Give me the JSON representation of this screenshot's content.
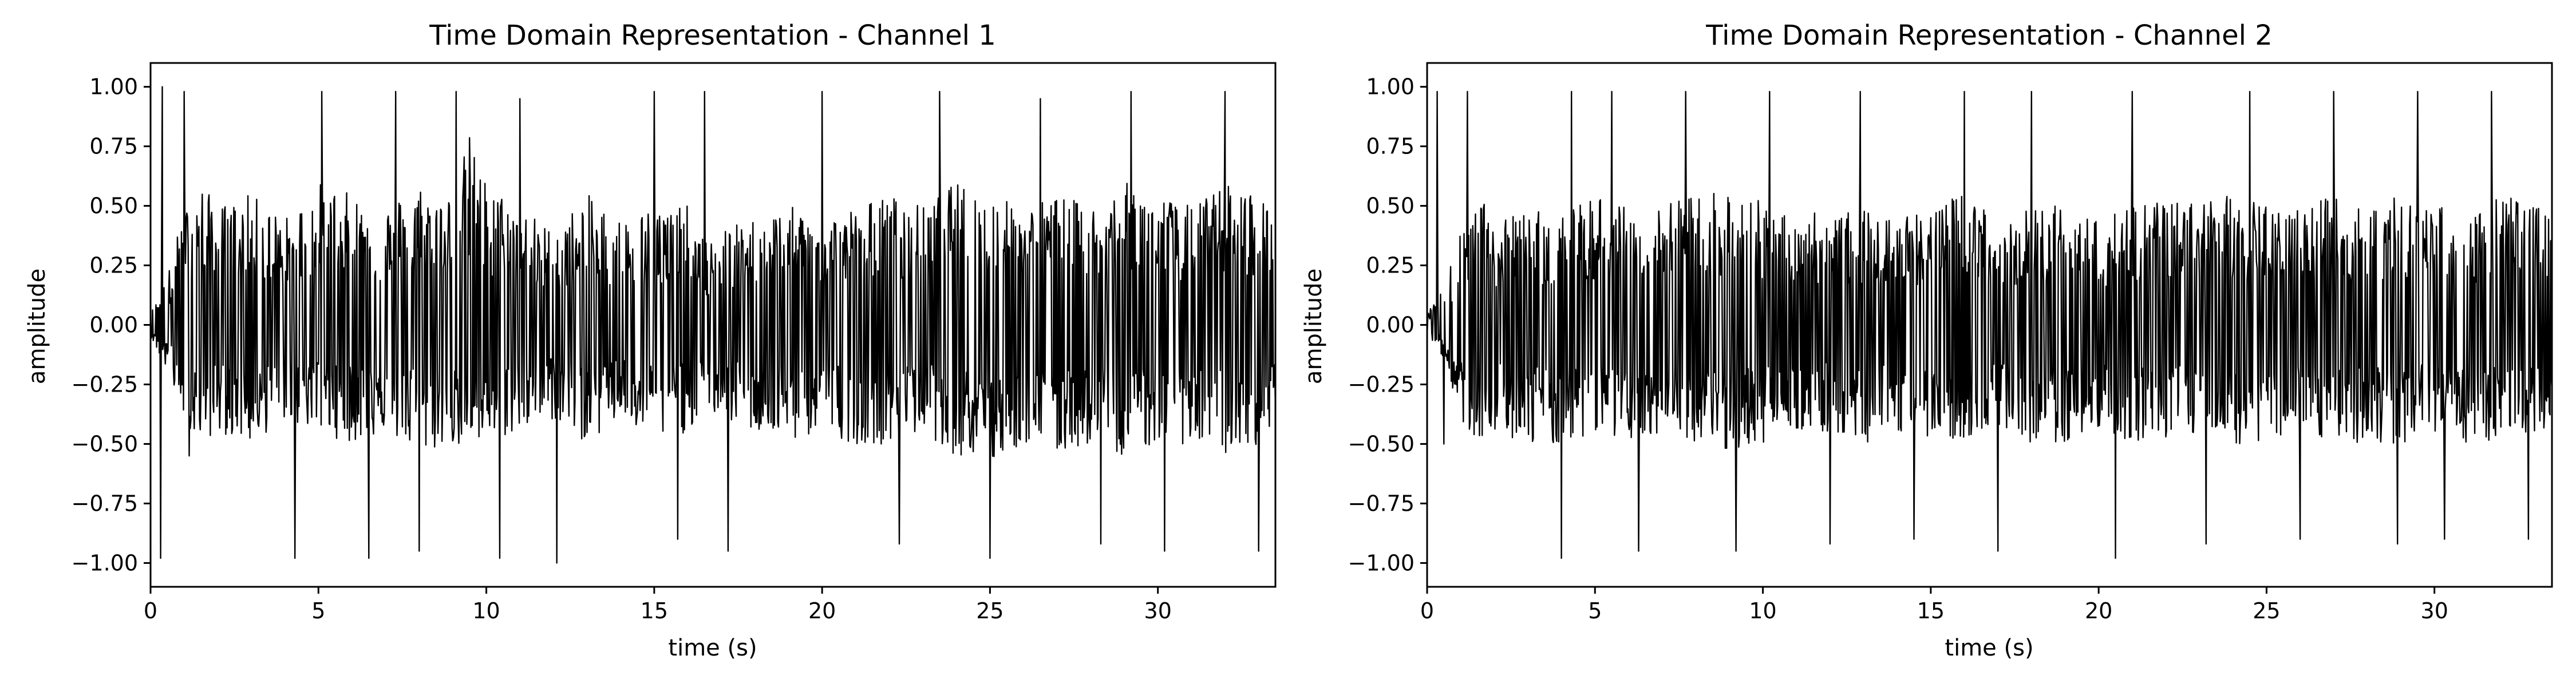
{
  "chart_data": [
    {
      "type": "line",
      "title": "Time Domain Representation - Channel 1",
      "xlabel": "time (s)",
      "ylabel": "amplitude",
      "xlim": [
        0,
        33.5
      ],
      "ylim": [
        -1.1,
        1.1
      ],
      "xticks": [
        0,
        5,
        10,
        15,
        20,
        25,
        30
      ],
      "xtick_labels": [
        "0",
        "5",
        "10",
        "15",
        "20",
        "25",
        "30"
      ],
      "yticks": [
        1.0,
        0.75,
        0.5,
        0.25,
        0.0,
        -0.25,
        -0.5,
        -0.75,
        -1.0
      ],
      "ytick_labels": [
        "1.00",
        "0.75",
        "0.50",
        "0.25",
        "0.00",
        "−0.25",
        "−0.50",
        "−0.75",
        "−1.00"
      ],
      "grid": false,
      "series": [
        {
          "color": "#000000",
          "x_range": [
            0,
            33.5
          ],
          "envelope": {
            "x": [
              0,
              0.5,
              1.0,
              1.5,
              2.0,
              3.0,
              4.0,
              5.0,
              6.0,
              7.0,
              8.0,
              9.0,
              9.5,
              10.0,
              11.0,
              12.0,
              13.0,
              14.0,
              15.0,
              16.0,
              16.5,
              17.0,
              18.0,
              19.0,
              20.0,
              21.0,
              22.0,
              23.0,
              24.0,
              25.0,
              26.0,
              27.0,
              28.0,
              29.0,
              30.0,
              31.0,
              32.0,
              33.0,
              33.5
            ],
            "upper": [
              0.05,
              0.2,
              0.5,
              0.6,
              0.5,
              0.55,
              0.45,
              0.6,
              0.55,
              0.5,
              0.6,
              0.55,
              0.8,
              0.6,
              0.5,
              0.4,
              0.55,
              0.45,
              0.5,
              0.5,
              0.35,
              0.4,
              0.45,
              0.5,
              0.45,
              0.5,
              0.55,
              0.5,
              0.6,
              0.55,
              0.5,
              0.55,
              0.5,
              0.6,
              0.55,
              0.5,
              0.6,
              0.55,
              0.5
            ],
            "lower": [
              -0.05,
              -0.2,
              -0.4,
              -0.5,
              -0.45,
              -0.5,
              -0.4,
              -0.45,
              -0.5,
              -0.45,
              -0.55,
              -0.5,
              -0.55,
              -0.5,
              -0.45,
              -0.4,
              -0.5,
              -0.4,
              -0.5,
              -0.45,
              -0.35,
              -0.4,
              -0.45,
              -0.5,
              -0.45,
              -0.5,
              -0.5,
              -0.45,
              -0.55,
              -0.6,
              -0.5,
              -0.55,
              -0.5,
              -0.55,
              -0.5,
              -0.5,
              -0.55,
              -0.5,
              -0.45
            ]
          },
          "peaks": [
            {
              "x": 0.3,
              "y": -0.98
            },
            {
              "x": 0.35,
              "y": 1.0
            },
            {
              "x": 1.0,
              "y": 0.98
            },
            {
              "x": 1.15,
              "y": -0.55
            },
            {
              "x": 4.3,
              "y": -0.98
            },
            {
              "x": 5.1,
              "y": 0.98
            },
            {
              "x": 6.5,
              "y": -0.98
            },
            {
              "x": 7.3,
              "y": 0.98
            },
            {
              "x": 8.0,
              "y": -0.95
            },
            {
              "x": 9.1,
              "y": 0.98
            },
            {
              "x": 10.4,
              "y": -0.98
            },
            {
              "x": 11.0,
              "y": 0.95
            },
            {
              "x": 12.1,
              "y": -1.0
            },
            {
              "x": 15.0,
              "y": 0.98
            },
            {
              "x": 15.7,
              "y": -0.9
            },
            {
              "x": 16.5,
              "y": 0.98
            },
            {
              "x": 17.2,
              "y": -0.95
            },
            {
              "x": 20.0,
              "y": 0.98
            },
            {
              "x": 22.3,
              "y": -0.92
            },
            {
              "x": 23.5,
              "y": 0.98
            },
            {
              "x": 25.0,
              "y": -0.98
            },
            {
              "x": 26.5,
              "y": 0.95
            },
            {
              "x": 28.3,
              "y": -0.92
            },
            {
              "x": 29.2,
              "y": 0.98
            },
            {
              "x": 30.2,
              "y": -0.95
            },
            {
              "x": 32.0,
              "y": 0.98
            },
            {
              "x": 33.0,
              "y": -0.95
            }
          ]
        }
      ]
    },
    {
      "type": "line",
      "title": "Time Domain Representation - Channel 2",
      "xlabel": "time (s)",
      "ylabel": "amplitude",
      "xlim": [
        0,
        33.5
      ],
      "ylim": [
        -1.1,
        1.1
      ],
      "xticks": [
        0,
        5,
        10,
        15,
        20,
        25,
        30
      ],
      "xtick_labels": [
        "0",
        "5",
        "10",
        "15",
        "20",
        "25",
        "30"
      ],
      "yticks": [
        1.0,
        0.75,
        0.5,
        0.25,
        0.0,
        -0.25,
        -0.5,
        -0.75,
        -1.0
      ],
      "ytick_labels": [
        "1.00",
        "0.75",
        "0.50",
        "0.25",
        "0.00",
        "−0.25",
        "−0.50",
        "−0.75",
        "−1.00"
      ],
      "grid": false,
      "series": [
        {
          "color": "#000000",
          "x_range": [
            0,
            33.5
          ],
          "envelope": {
            "x": [
              0,
              0.5,
              1.0,
              1.5,
              2.0,
              3.0,
              4.0,
              5.0,
              6.0,
              7.0,
              8.0,
              9.0,
              9.5,
              10.0,
              11.0,
              12.0,
              13.0,
              14.0,
              15.0,
              16.0,
              16.5,
              17.0,
              18.0,
              19.0,
              20.0,
              21.0,
              22.0,
              23.0,
              24.0,
              25.0,
              26.0,
              27.0,
              28.0,
              29.0,
              30.0,
              31.0,
              32.0,
              33.0,
              33.5
            ],
            "upper": [
              0.05,
              0.15,
              0.4,
              0.55,
              0.45,
              0.5,
              0.45,
              0.55,
              0.5,
              0.5,
              0.55,
              0.6,
              0.5,
              0.55,
              0.5,
              0.45,
              0.5,
              0.45,
              0.5,
              0.55,
              0.5,
              0.45,
              0.5,
              0.5,
              0.45,
              0.5,
              0.55,
              0.5,
              0.55,
              0.5,
              0.5,
              0.55,
              0.5,
              0.55,
              0.5,
              0.5,
              0.55,
              0.5,
              0.5
            ],
            "lower": [
              -0.05,
              -0.15,
              -0.4,
              -0.5,
              -0.45,
              -0.5,
              -0.5,
              -0.45,
              -0.5,
              -0.45,
              -0.5,
              -0.55,
              -0.5,
              -0.5,
              -0.45,
              -0.45,
              -0.5,
              -0.45,
              -0.5,
              -0.5,
              -0.45,
              -0.45,
              -0.5,
              -0.5,
              -0.45,
              -0.5,
              -0.5,
              -0.45,
              -0.5,
              -0.5,
              -0.45,
              -0.5,
              -0.5,
              -0.5,
              -0.45,
              -0.5,
              -0.5,
              -0.45,
              -0.45
            ]
          },
          "peaks": [
            {
              "x": 0.3,
              "y": 0.98
            },
            {
              "x": 0.5,
              "y": -0.5
            },
            {
              "x": 1.2,
              "y": 0.98
            },
            {
              "x": 4.0,
              "y": -0.98
            },
            {
              "x": 4.3,
              "y": 0.98
            },
            {
              "x": 5.5,
              "y": 0.98
            },
            {
              "x": 6.3,
              "y": -0.95
            },
            {
              "x": 7.7,
              "y": 0.98
            },
            {
              "x": 9.2,
              "y": -0.95
            },
            {
              "x": 10.2,
              "y": 0.98
            },
            {
              "x": 12.0,
              "y": -0.92
            },
            {
              "x": 12.9,
              "y": 0.98
            },
            {
              "x": 14.5,
              "y": -0.9
            },
            {
              "x": 16.0,
              "y": 0.98
            },
            {
              "x": 17.0,
              "y": -0.95
            },
            {
              "x": 18.0,
              "y": 0.98
            },
            {
              "x": 20.5,
              "y": -0.98
            },
            {
              "x": 21.0,
              "y": 0.98
            },
            {
              "x": 23.2,
              "y": -0.92
            },
            {
              "x": 24.5,
              "y": 0.98
            },
            {
              "x": 26.0,
              "y": -0.9
            },
            {
              "x": 27.0,
              "y": 0.98
            },
            {
              "x": 28.9,
              "y": -0.92
            },
            {
              "x": 29.5,
              "y": 0.98
            },
            {
              "x": 30.3,
              "y": -0.9
            },
            {
              "x": 31.7,
              "y": 0.98
            },
            {
              "x": 32.8,
              "y": -0.9
            }
          ]
        }
      ]
    }
  ]
}
